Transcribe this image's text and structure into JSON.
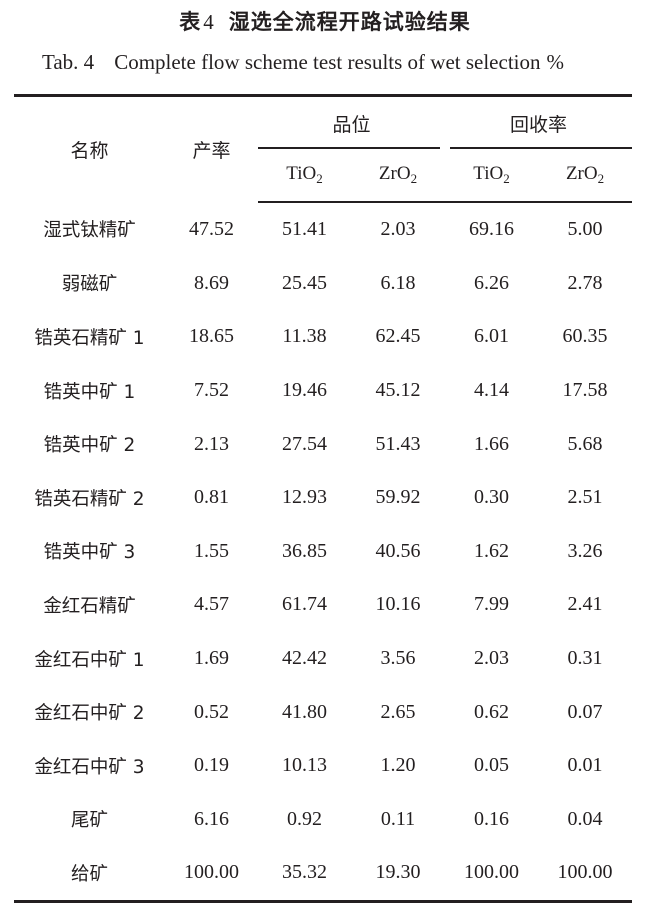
{
  "caption": {
    "cn_prefix": "表",
    "number": "4",
    "cn_title": "湿选全流程开路试验结果",
    "en_prefix": "Tab. 4",
    "en_title": "Complete flow scheme test results of wet selection",
    "unit": "%"
  },
  "header": {
    "name": "名称",
    "yield": "产率",
    "grade": "品位",
    "recovery": "回收率",
    "sub_cols": [
      {
        "base": "TiO",
        "sub": "2"
      },
      {
        "base": "ZrO",
        "sub": "2"
      },
      {
        "base": "TiO",
        "sub": "2"
      },
      {
        "base": "ZrO",
        "sub": "2"
      }
    ]
  },
  "rows": [
    {
      "name": "湿式钛精矿",
      "values": [
        "47.52",
        "51.41",
        "2.03",
        "69.16",
        "5.00"
      ]
    },
    {
      "name": "弱磁矿",
      "values": [
        "8.69",
        "25.45",
        "6.18",
        "6.26",
        "2.78"
      ]
    },
    {
      "name": "锆英石精矿 1",
      "values": [
        "18.65",
        "11.38",
        "62.45",
        "6.01",
        "60.35"
      ]
    },
    {
      "name": "锆英中矿 1",
      "values": [
        "7.52",
        "19.46",
        "45.12",
        "4.14",
        "17.58"
      ]
    },
    {
      "name": "锆英中矿 2",
      "values": [
        "2.13",
        "27.54",
        "51.43",
        "1.66",
        "5.68"
      ]
    },
    {
      "name": "锆英石精矿 2",
      "values": [
        "0.81",
        "12.93",
        "59.92",
        "0.30",
        "2.51"
      ]
    },
    {
      "name": "锆英中矿 3",
      "values": [
        "1.55",
        "36.85",
        "40.56",
        "1.62",
        "3.26"
      ]
    },
    {
      "name": "金红石精矿",
      "values": [
        "4.57",
        "61.74",
        "10.16",
        "7.99",
        "2.41"
      ]
    },
    {
      "name": "金红石中矿 1",
      "values": [
        "1.69",
        "42.42",
        "3.56",
        "2.03",
        "0.31"
      ]
    },
    {
      "name": "金红石中矿 2",
      "values": [
        "0.52",
        "41.80",
        "2.65",
        "0.62",
        "0.07"
      ]
    },
    {
      "name": "金红石中矿 3",
      "values": [
        "0.19",
        "10.13",
        "1.20",
        "0.05",
        "0.01"
      ]
    },
    {
      "name": "尾矿",
      "values": [
        "6.16",
        "0.92",
        "0.11",
        "0.16",
        "0.04"
      ]
    },
    {
      "name": "给矿",
      "values": [
        "100.00",
        "35.32",
        "19.30",
        "100.00",
        "100.00"
      ]
    }
  ]
}
